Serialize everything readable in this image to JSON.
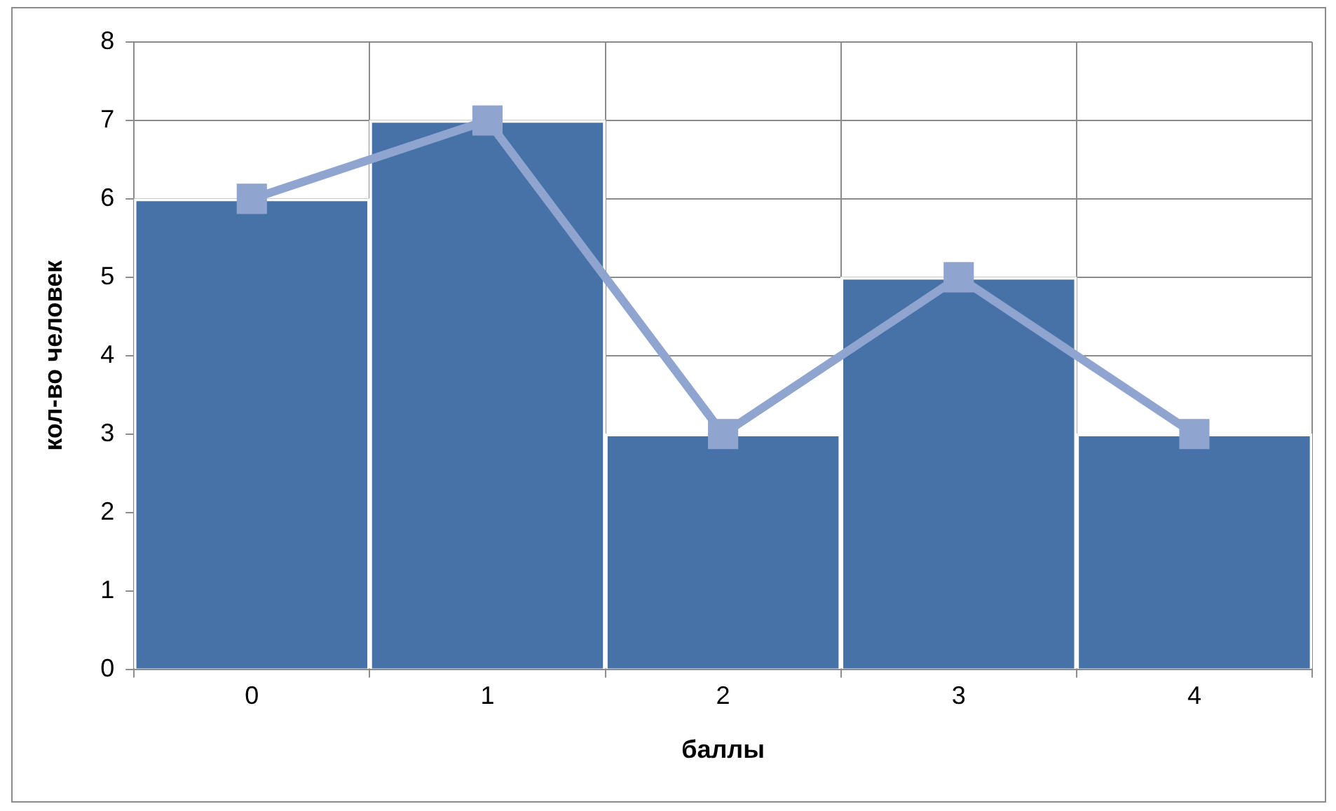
{
  "chart_data": {
    "type": "bar",
    "xlabel": "баллы",
    "ylabel": "кол-во человек",
    "categories": [
      "0",
      "1",
      "2",
      "3",
      "4"
    ],
    "series": [
      {
        "color": "#4672a8",
        "values": [
          6,
          7,
          3,
          5,
          3
        ]
      },
      {
        "type": "line",
        "color": "#8fa5cf",
        "values": [
          6,
          7,
          3,
          5,
          3
        ]
      }
    ],
    "ylim": [
      0,
      8
    ],
    "yticks": [
      0,
      1,
      2,
      3,
      4,
      5,
      6,
      7,
      8
    ],
    "grid": true,
    "legend": false,
    "marker": "square"
  }
}
